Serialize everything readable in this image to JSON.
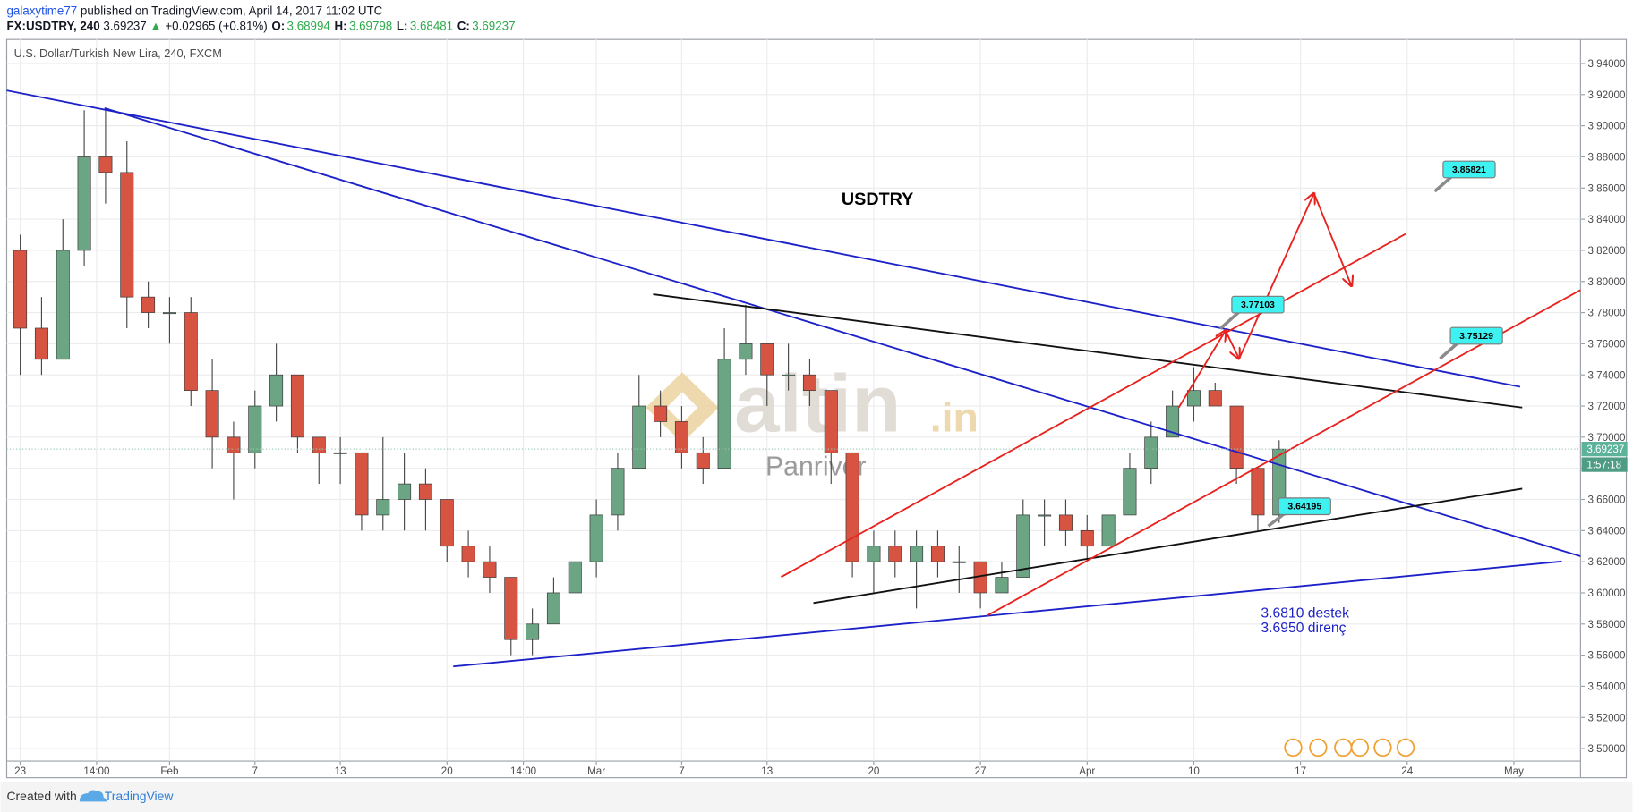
{
  "chart_data": {
    "type": "candlestick",
    "author": "galaxytime77",
    "published": "published on TradingView.com, April 14, 2017 11:02 UTC",
    "symbol": "FX:USDTRY, 240",
    "last": 3.69237,
    "change_arrow": "▲",
    "change": "+0.02965 (+0.81%)",
    "quote": [
      {
        "label": "O:",
        "value": 3.68994
      },
      {
        "label": "H:",
        "value": 3.69798
      },
      {
        "label": "L:",
        "value": 3.68481
      },
      {
        "label": "C:",
        "value": 3.69237
      }
    ],
    "title": "U.S. Dollar/Turkish New Lira, 240, FXCM",
    "x": [
      0,
      1,
      2,
      3,
      4,
      5,
      6,
      7,
      8,
      9,
      10,
      11,
      12,
      13,
      14,
      15,
      16,
      17,
      18,
      19,
      20,
      21,
      22,
      23,
      24,
      25,
      26,
      27,
      28,
      29,
      30,
      31,
      32,
      33,
      34,
      35,
      36,
      37,
      38,
      39,
      40,
      41,
      42,
      43,
      44,
      45,
      46,
      47,
      48,
      49,
      50,
      51,
      52,
      53,
      54,
      55,
      56,
      57,
      58,
      59
    ],
    "open": [
      3.82,
      3.77,
      3.75,
      3.82,
      3.88,
      3.87,
      3.79,
      3.78,
      3.78,
      3.73,
      3.7,
      3.69,
      3.72,
      3.74,
      3.7,
      3.69,
      3.69,
      3.65,
      3.66,
      3.67,
      3.66,
      3.63,
      3.62,
      3.61,
      3.57,
      3.58,
      3.6,
      3.62,
      3.65,
      3.68,
      3.72,
      3.71,
      3.69,
      3.68,
      3.75,
      3.76,
      3.74,
      3.74,
      3.73,
      3.69,
      3.62,
      3.63,
      3.62,
      3.63,
      3.62,
      3.62,
      3.6,
      3.61,
      3.65,
      3.65,
      3.64,
      3.63,
      3.65,
      3.68,
      3.7,
      3.72,
      3.73,
      3.72,
      3.68,
      3.65
    ],
    "high": [
      3.83,
      3.79,
      3.84,
      3.91,
      3.91,
      3.89,
      3.8,
      3.79,
      3.79,
      3.75,
      3.71,
      3.73,
      3.76,
      3.74,
      3.7,
      3.7,
      3.69,
      3.7,
      3.69,
      3.68,
      3.66,
      3.64,
      3.63,
      3.61,
      3.59,
      3.61,
      3.62,
      3.66,
      3.69,
      3.74,
      3.73,
      3.72,
      3.7,
      3.77,
      3.785,
      3.76,
      3.76,
      3.75,
      3.73,
      3.69,
      3.64,
      3.64,
      3.64,
      3.64,
      3.63,
      3.62,
      3.62,
      3.66,
      3.66,
      3.66,
      3.65,
      3.65,
      3.69,
      3.71,
      3.73,
      3.745,
      3.735,
      3.72,
      3.68,
      3.698
    ],
    "low": [
      3.74,
      3.74,
      3.75,
      3.81,
      3.85,
      3.77,
      3.77,
      3.76,
      3.72,
      3.68,
      3.66,
      3.68,
      3.71,
      3.69,
      3.67,
      3.67,
      3.64,
      3.64,
      3.64,
      3.64,
      3.62,
      3.61,
      3.6,
      3.56,
      3.56,
      3.58,
      3.6,
      3.61,
      3.64,
      3.68,
      3.7,
      3.68,
      3.67,
      3.68,
      3.74,
      3.72,
      3.73,
      3.72,
      3.67,
      3.61,
      3.6,
      3.61,
      3.59,
      3.61,
      3.6,
      3.59,
      3.6,
      3.61,
      3.63,
      3.63,
      3.62,
      3.63,
      3.65,
      3.67,
      3.7,
      3.71,
      3.72,
      3.67,
      3.64,
      3.645
    ],
    "close": [
      3.77,
      3.75,
      3.82,
      3.88,
      3.87,
      3.79,
      3.78,
      3.78,
      3.73,
      3.7,
      3.69,
      3.72,
      3.74,
      3.7,
      3.69,
      3.69,
      3.65,
      3.66,
      3.67,
      3.66,
      3.63,
      3.62,
      3.61,
      3.57,
      3.58,
      3.6,
      3.62,
      3.65,
      3.68,
      3.72,
      3.71,
      3.69,
      3.68,
      3.75,
      3.76,
      3.74,
      3.74,
      3.73,
      3.69,
      3.62,
      3.63,
      3.62,
      3.63,
      3.62,
      3.62,
      3.6,
      3.61,
      3.65,
      3.65,
      3.64,
      3.63,
      3.65,
      3.68,
      3.7,
      3.72,
      3.73,
      3.72,
      3.68,
      3.65,
      3.69237
    ],
    "up_color": "#6ba583",
    "down_color": "#d75442",
    "xlim": [
      -0.634,
      73.122
    ],
    "xticks": [
      {
        "value": 0,
        "label": "23"
      },
      {
        "value": 3.58,
        "label": "14:00"
      },
      {
        "value": 7,
        "label": "Feb"
      },
      {
        "value": 11,
        "label": "7"
      },
      {
        "value": 15,
        "label": "13"
      },
      {
        "value": 20,
        "label": "20"
      },
      {
        "value": 23.58,
        "label": "14:00"
      },
      {
        "value": 27,
        "label": "Mar"
      },
      {
        "value": 31,
        "label": "7"
      },
      {
        "value": 35,
        "label": "13"
      },
      {
        "value": 40,
        "label": "20"
      },
      {
        "value": 45,
        "label": "27"
      },
      {
        "value": 50,
        "label": "Apr"
      },
      {
        "value": 55,
        "label": "10"
      },
      {
        "value": 60,
        "label": "17"
      },
      {
        "value": 65,
        "label": "24"
      },
      {
        "value": 70,
        "label": "May"
      }
    ],
    "ylim": [
      3.4813,
      3.9554
    ],
    "yticks": [
      {
        "value": 3.5,
        "label": "3.50000"
      },
      {
        "value": 3.52,
        "label": "3.52000"
      },
      {
        "value": 3.54,
        "label": "3.54000"
      },
      {
        "value": 3.56,
        "label": "3.56000"
      },
      {
        "value": 3.58,
        "label": "3.58000"
      },
      {
        "value": 3.6,
        "label": "3.60000"
      },
      {
        "value": 3.62,
        "label": "3.62000"
      },
      {
        "value": 3.64,
        "label": "3.64000"
      },
      {
        "value": 3.66,
        "label": "3.66000"
      },
      {
        "value": 3.68,
        "label": "3.68000"
      },
      {
        "value": 3.7,
        "label": "3.70000"
      },
      {
        "value": 3.72,
        "label": "3.72000"
      },
      {
        "value": 3.74,
        "label": "3.74000"
      },
      {
        "value": 3.76,
        "label": "3.76000"
      },
      {
        "value": 3.78,
        "label": "3.78000"
      },
      {
        "value": 3.8,
        "label": "3.80000"
      },
      {
        "value": 3.82,
        "label": "3.82000"
      },
      {
        "value": 3.84,
        "label": "3.84000"
      },
      {
        "value": 3.86,
        "label": "3.86000"
      },
      {
        "value": 3.88,
        "label": "3.88000"
      },
      {
        "value": 3.9,
        "label": "3.90000"
      },
      {
        "value": 3.92,
        "label": "3.92000"
      },
      {
        "value": 3.94,
        "label": "3.94000"
      }
    ],
    "grid": true,
    "price_line": {
      "value": 3.69237,
      "timer": "1:57:18"
    },
    "annotations": {
      "heading": "USDTRY",
      "support": "3.6810 destek",
      "resistance": "3.6950 direnç",
      "callouts": [
        "3.85821",
        "3.77103",
        "3.75129",
        "3.64195"
      ],
      "watermark": "altin",
      "watermark_suffix": ".in",
      "watermark_sub": "Panriver"
    },
    "footer": {
      "created": "Created with",
      "brand": "TradingView"
    }
  }
}
